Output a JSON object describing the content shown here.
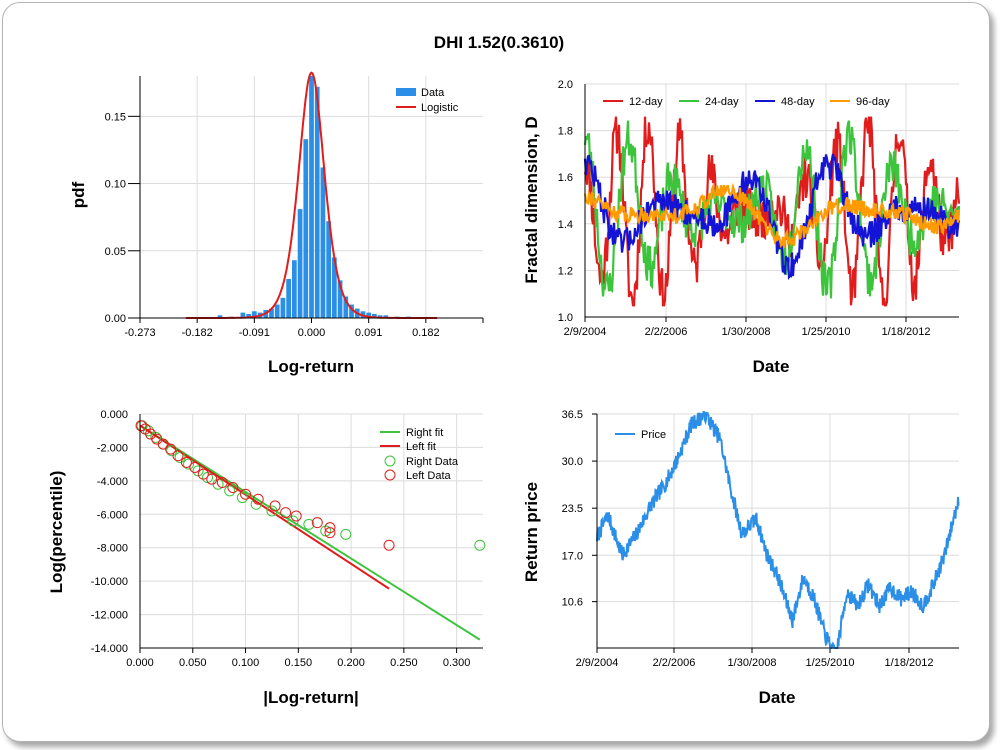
{
  "title": "DHI 1.52(0.3610)",
  "chart_data": [
    {
      "id": "hist",
      "type": "bar",
      "xlabel": "Log-return",
      "ylabel": "pdf",
      "xlim": [
        -0.273,
        0.273
      ],
      "ylim": [
        0,
        0.18
      ],
      "xticks": [
        -0.273,
        -0.182,
        -0.091,
        0.0,
        0.091,
        0.182
      ],
      "xtick_labels": [
        "-0.273",
        "-0.182",
        "-0.091",
        "0.000",
        "0.091",
        "0.182"
      ],
      "yticks": [
        0,
        0.05,
        0.1,
        0.15
      ],
      "ytick_labels": [
        "0.00",
        "0.05",
        "0.10",
        "0.15"
      ],
      "legend": [
        "Data",
        "Logistic"
      ],
      "bin_width": 0.0091,
      "bins": [
        {
          "x": -0.1456,
          "v": 0.002
        },
        {
          "x": -0.1274,
          "v": 0.001
        },
        {
          "x": -0.1092,
          "v": 0.004
        },
        {
          "x": -0.1001,
          "v": 0.003
        },
        {
          "x": -0.091,
          "v": 0.005
        },
        {
          "x": -0.0819,
          "v": 0.004
        },
        {
          "x": -0.0728,
          "v": 0.006
        },
        {
          "x": -0.0637,
          "v": 0.007
        },
        {
          "x": -0.0546,
          "v": 0.01
        },
        {
          "x": -0.0455,
          "v": 0.015
        },
        {
          "x": -0.0364,
          "v": 0.029
        },
        {
          "x": -0.0273,
          "v": 0.043
        },
        {
          "x": -0.0182,
          "v": 0.081
        },
        {
          "x": -0.0091,
          "v": 0.133
        },
        {
          "x": 0.0,
          "v": 0.183
        },
        {
          "x": 0.0091,
          "v": 0.172
        },
        {
          "x": 0.0182,
          "v": 0.112
        },
        {
          "x": 0.0273,
          "v": 0.072
        },
        {
          "x": 0.0364,
          "v": 0.045
        },
        {
          "x": 0.0455,
          "v": 0.028
        },
        {
          "x": 0.0546,
          "v": 0.016
        },
        {
          "x": 0.0637,
          "v": 0.01
        },
        {
          "x": 0.0728,
          "v": 0.007
        },
        {
          "x": 0.0819,
          "v": 0.005
        },
        {
          "x": 0.091,
          "v": 0.004
        },
        {
          "x": 0.1001,
          "v": 0.003
        },
        {
          "x": 0.1092,
          "v": 0.002
        },
        {
          "x": 0.1183,
          "v": 0.002
        },
        {
          "x": 0.1365,
          "v": 0.001
        },
        {
          "x": 0.1547,
          "v": 0.001
        }
      ],
      "logistic": {
        "mu": 0.0,
        "s": 0.0137
      }
    },
    {
      "id": "fractal",
      "type": "line",
      "xlabel": "Date",
      "ylabel": "Fractal dimension, D",
      "ylim": [
        1.0,
        2.0
      ],
      "yticks": [
        1.0,
        1.2,
        1.4,
        1.6,
        1.8,
        2.0
      ],
      "ytick_labels": [
        "1.0",
        "1.2",
        "1.4",
        "1.6",
        "1.8",
        "2.0"
      ],
      "xtick_labels": [
        "2/9/2004",
        "2/2/2006",
        "1/30/2008",
        "1/25/2010",
        "1/18/2012"
      ],
      "series": [
        {
          "name": "12-day",
          "color": "#e11c1c",
          "period": 5,
          "amp": 0.3,
          "seed": 11
        },
        {
          "name": "24-day",
          "color": "#3cc43c",
          "period": 7,
          "amp": 0.26,
          "seed": 23
        },
        {
          "name": "48-day",
          "color": "#1414d6",
          "period": 13,
          "amp": 0.18,
          "seed": 47
        },
        {
          "name": "96-day",
          "color": "#ff9a00",
          "period": 22,
          "amp": 0.1,
          "seed": 91
        }
      ]
    },
    {
      "id": "tail",
      "type": "scatter",
      "xlabel": "|Log-return|",
      "ylabel": "Log(percentile)",
      "xlim": [
        0,
        0.325
      ],
      "ylim": [
        -14,
        0
      ],
      "xticks": [
        0,
        0.05,
        0.1,
        0.15,
        0.2,
        0.25,
        0.3
      ],
      "xtick_labels": [
        "0.000",
        "0.050",
        "0.100",
        "0.150",
        "0.200",
        "0.250",
        "0.300"
      ],
      "yticks": [
        0,
        -2,
        -4,
        -6,
        -8,
        -10,
        -12,
        -14
      ],
      "ytick_labels": [
        "0.000",
        "-2.000",
        "-4.000",
        "-6.000",
        "-8.000",
        "-10.000",
        "-12.000",
        "-14.000"
      ],
      "legend": [
        "Right fit",
        "Left fit",
        "Right Data",
        "Left Data"
      ],
      "right_fit": [
        [
          0,
          -0.69
        ],
        [
          0.322,
          -13.5
        ]
      ],
      "left_fit": [
        [
          0,
          -0.69
        ],
        [
          0.236,
          -10.45
        ]
      ],
      "right_data": [
        [
          0.002,
          -0.7
        ],
        [
          0.008,
          -1.0
        ],
        [
          0.015,
          -1.4
        ],
        [
          0.022,
          -1.8
        ],
        [
          0.03,
          -2.2
        ],
        [
          0.038,
          -2.6
        ],
        [
          0.046,
          -3.0
        ],
        [
          0.055,
          -3.4
        ],
        [
          0.064,
          -3.8
        ],
        [
          0.074,
          -4.2
        ],
        [
          0.085,
          -4.6
        ],
        [
          0.097,
          -5.0
        ],
        [
          0.11,
          -5.4
        ],
        [
          0.125,
          -5.8
        ],
        [
          0.145,
          -6.4
        ],
        [
          0.16,
          -6.6
        ],
        [
          0.176,
          -7.0
        ],
        [
          0.195,
          -7.2
        ],
        [
          0.322,
          -7.85
        ]
      ],
      "left_data": [
        [
          0.001,
          -0.7
        ],
        [
          0.005,
          -0.9
        ],
        [
          0.01,
          -1.2
        ],
        [
          0.016,
          -1.5
        ],
        [
          0.022,
          -1.8
        ],
        [
          0.029,
          -2.1
        ],
        [
          0.036,
          -2.5
        ],
        [
          0.044,
          -2.9
        ],
        [
          0.052,
          -3.2
        ],
        [
          0.06,
          -3.6
        ],
        [
          0.068,
          -3.9
        ],
        [
          0.078,
          -4.1
        ],
        [
          0.088,
          -4.4
        ],
        [
          0.1,
          -4.8
        ],
        [
          0.112,
          -5.1
        ],
        [
          0.128,
          -5.5
        ],
        [
          0.138,
          -5.9
        ],
        [
          0.148,
          -6.1
        ],
        [
          0.168,
          -6.5
        ],
        [
          0.18,
          -6.8
        ],
        [
          0.18,
          -7.1
        ],
        [
          0.236,
          -7.85
        ]
      ]
    },
    {
      "id": "price",
      "type": "line",
      "xlabel": "Date",
      "ylabel": "Return price",
      "ylim": [
        4.2,
        36.5
      ],
      "yticks": [
        10.6,
        17.0,
        23.5,
        30.0,
        36.5
      ],
      "ytick_labels": [
        "10.6",
        "17.0",
        "23.5",
        "30.0",
        "36.5"
      ],
      "xtick_labels": [
        "2/9/2004",
        "2/2/2006",
        "1/30/2008",
        "1/25/2010",
        "1/18/2012"
      ],
      "legend": [
        "Price"
      ],
      "color": "#2b8fe8",
      "anchors": [
        [
          0,
          19.5
        ],
        [
          0.03,
          22.5
        ],
        [
          0.07,
          17
        ],
        [
          0.11,
          20
        ],
        [
          0.15,
          24
        ],
        [
          0.19,
          27
        ],
        [
          0.22,
          30
        ],
        [
          0.26,
          35
        ],
        [
          0.3,
          36.5
        ],
        [
          0.34,
          33
        ],
        [
          0.37,
          26
        ],
        [
          0.4,
          20
        ],
        [
          0.44,
          22
        ],
        [
          0.47,
          17
        ],
        [
          0.5,
          14
        ],
        [
          0.54,
          8
        ],
        [
          0.57,
          14
        ],
        [
          0.6,
          11
        ],
        [
          0.63,
          6
        ],
        [
          0.66,
          3
        ],
        [
          0.69,
          12
        ],
        [
          0.72,
          10
        ],
        [
          0.75,
          13
        ],
        [
          0.78,
          10
        ],
        [
          0.81,
          12.5
        ],
        [
          0.84,
          11
        ],
        [
          0.87,
          12
        ],
        [
          0.9,
          10
        ],
        [
          0.93,
          13
        ],
        [
          0.96,
          17
        ],
        [
          1.0,
          25
        ]
      ]
    }
  ]
}
